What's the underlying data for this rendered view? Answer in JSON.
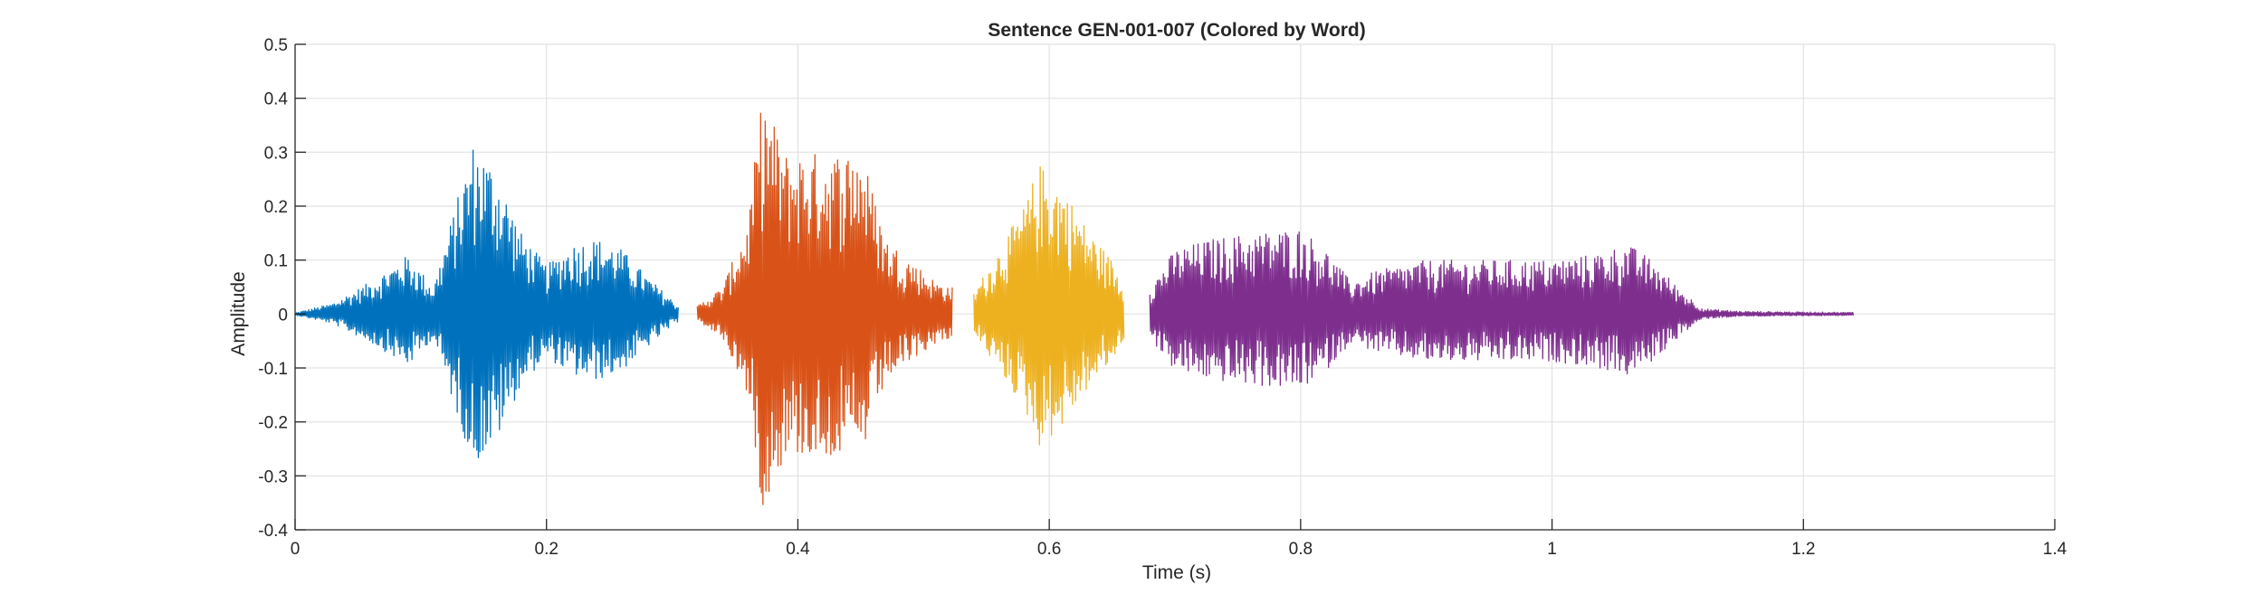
{
  "chart_data": {
    "type": "line",
    "title": "Sentence GEN-001-007 (Colored by Word)",
    "xlabel": "Time (s)",
    "ylabel": "Amplitude",
    "xlim": [
      0,
      1.4
    ],
    "ylim": [
      -0.4,
      0.5
    ],
    "xticks": [
      0,
      0.2,
      0.4,
      0.6,
      0.8,
      1,
      1.2,
      1.4
    ],
    "xtick_labels": [
      "0",
      "0.2",
      "0.4",
      "0.6",
      "0.8",
      "1",
      "1.2",
      "1.4"
    ],
    "yticks": [
      -0.4,
      -0.3,
      -0.2,
      -0.1,
      0,
      0.1,
      0.2,
      0.3,
      0.4,
      0.5
    ],
    "ytick_labels": [
      "-0.4",
      "-0.3",
      "-0.2",
      "-0.1",
      "0",
      "0.1",
      "0.2",
      "0.3",
      "0.4",
      "0.5"
    ],
    "grid": true,
    "box": "open-top-right",
    "series": [
      {
        "color": "#0072BD",
        "t_start": 0.0,
        "t_end": 0.305,
        "envelope": [
          [
            0.0,
            0.002
          ],
          [
            0.03,
            0.02
          ],
          [
            0.06,
            0.06
          ],
          [
            0.09,
            0.11
          ],
          [
            0.11,
            0.05
          ],
          [
            0.125,
            0.18
          ],
          [
            0.142,
            0.32
          ],
          [
            0.16,
            0.27
          ],
          [
            0.18,
            0.15
          ],
          [
            0.2,
            0.09
          ],
          [
            0.22,
            0.13
          ],
          [
            0.24,
            0.14
          ],
          [
            0.26,
            0.12
          ],
          [
            0.28,
            0.07
          ],
          [
            0.305,
            0.015
          ]
        ]
      },
      {
        "color": "#D95319",
        "t_start": 0.32,
        "t_end": 0.523,
        "envelope": [
          [
            0.32,
            0.015
          ],
          [
            0.34,
            0.05
          ],
          [
            0.36,
            0.17
          ],
          [
            0.372,
            0.41
          ],
          [
            0.39,
            0.3
          ],
          [
            0.41,
            0.3
          ],
          [
            0.43,
            0.3
          ],
          [
            0.45,
            0.31
          ],
          [
            0.47,
            0.14
          ],
          [
            0.49,
            0.1
          ],
          [
            0.51,
            0.06
          ],
          [
            0.523,
            0.05
          ]
        ]
      },
      {
        "color": "#EDB120",
        "t_start": 0.54,
        "t_end": 0.66,
        "envelope": [
          [
            0.54,
            0.04
          ],
          [
            0.56,
            0.12
          ],
          [
            0.58,
            0.2
          ],
          [
            0.592,
            0.28
          ],
          [
            0.61,
            0.24
          ],
          [
            0.63,
            0.16
          ],
          [
            0.65,
            0.1
          ],
          [
            0.66,
            0.05
          ]
        ]
      },
      {
        "color": "#7E2F8E",
        "t_start": 0.68,
        "t_end": 1.24,
        "envelope": [
          [
            0.68,
            0.05
          ],
          [
            0.7,
            0.12
          ],
          [
            0.73,
            0.14
          ],
          [
            0.76,
            0.15
          ],
          [
            0.8,
            0.16
          ],
          [
            0.82,
            0.12
          ],
          [
            0.84,
            0.06
          ],
          [
            0.86,
            0.08
          ],
          [
            0.9,
            0.1
          ],
          [
            0.95,
            0.1
          ],
          [
            1.0,
            0.1
          ],
          [
            1.03,
            0.11
          ],
          [
            1.06,
            0.13
          ],
          [
            1.08,
            0.1
          ],
          [
            1.1,
            0.05
          ],
          [
            1.12,
            0.01
          ],
          [
            1.15,
            0.005
          ],
          [
            1.24,
            0.003
          ]
        ]
      }
    ]
  }
}
